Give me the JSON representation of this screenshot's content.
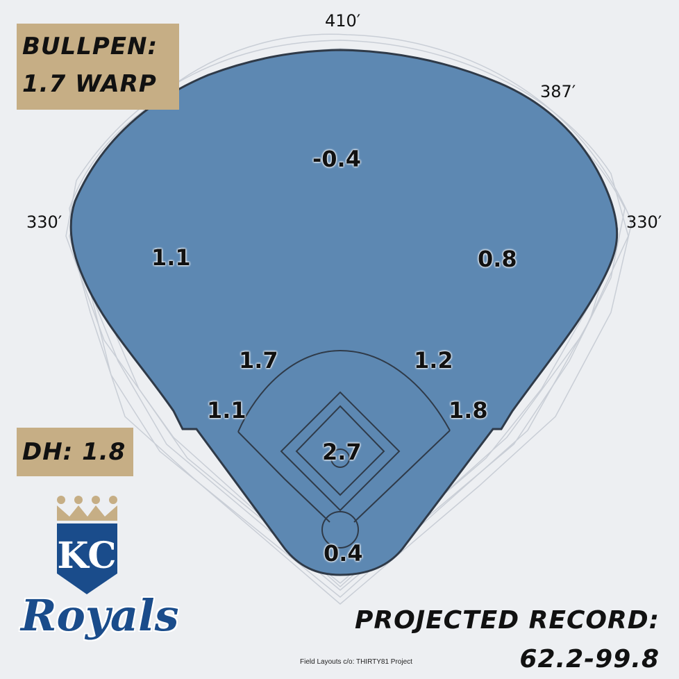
{
  "bullpen": {
    "line1": "BULLPEN:",
    "line2": "1.7 WARP"
  },
  "dh": {
    "label": "DH: 1.8"
  },
  "distances": {
    "center": "410′",
    "right_center": "387′",
    "left_line": "330′",
    "right_line": "330′"
  },
  "positions": {
    "cf": "-0.4",
    "lf": "1.1",
    "rf": "0.8",
    "ss": "1.7",
    "second_base": "1.2",
    "third_base": "1.1",
    "first_base": "1.8",
    "pitcher": "2.7",
    "catcher": "0.4"
  },
  "record": {
    "line1": "PROJECTED RECORD:",
    "line2": "62.2-99.8"
  },
  "credit": "Field Layouts c/o: THIRTY81 Project",
  "logo": {
    "monogram": "KC",
    "wordmark": "Royals"
  },
  "colors": {
    "field": "#5d88b2",
    "field_outline": "#2f3a48",
    "label_box": "#c6ae85",
    "background": "#edeff2",
    "ghost_lines": "#c9ced6",
    "royals_blue": "#1a4c8b",
    "crown_gold": "#c6ae85"
  },
  "icons": {
    "logo": "kc-royals-crown-shield-icon"
  }
}
